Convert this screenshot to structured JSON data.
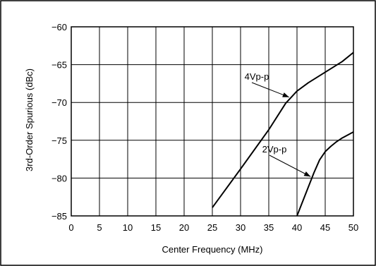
{
  "chart_data": {
    "type": "line",
    "xlabel": "Center Frequency (MHz)",
    "ylabel": "3rd-Order Spurious (dBc)",
    "xlim": [
      0,
      50
    ],
    "ylim": [
      -85,
      -60
    ],
    "x_ticks": [
      "0",
      "5",
      "10",
      "15",
      "20",
      "25",
      "30",
      "35",
      "40",
      "45",
      "50"
    ],
    "y_ticks": [
      "−60",
      "−65",
      "−70",
      "−75",
      "−80",
      "−85"
    ],
    "grid": true,
    "series": [
      {
        "name": "4Vp-p",
        "x": [
          25,
          30,
          35,
          38,
          40,
          42,
          45,
          48,
          50
        ],
        "y": [
          -83.9,
          -78.8,
          -73.6,
          -70.1,
          -68.5,
          -67.4,
          -66.0,
          -64.6,
          -63.4
        ]
      },
      {
        "name": "2Vp-p",
        "x": [
          40,
          42,
          43,
          44,
          45,
          46,
          47,
          48,
          50
        ],
        "y": [
          -85.0,
          -81.2,
          -79.3,
          -77.6,
          -76.5,
          -75.8,
          -75.2,
          -74.7,
          -73.9
        ]
      }
    ],
    "annotations": [
      {
        "text": "4Vp-p",
        "arrow_to": [
          38.6,
          -69.3
        ]
      },
      {
        "text": "2Vp-p",
        "arrow_to": [
          42.4,
          -79.8
        ]
      }
    ]
  }
}
